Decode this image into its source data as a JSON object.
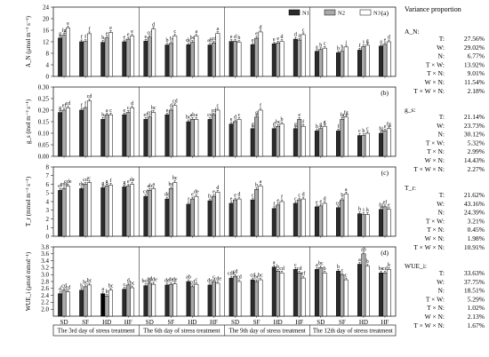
{
  "variance_title": "Variance proportion",
  "legend": [
    {
      "name": "N1",
      "color": "#2b2b2b"
    },
    {
      "name": "N2",
      "color": "#a9a9a9"
    },
    {
      "name": "N3",
      "color": "#ffffff"
    }
  ],
  "groups": [
    "SD",
    "SF",
    "HD",
    "HF"
  ],
  "days": [
    "The 3rd day of stress treatment",
    "The 6th day of stress treatment",
    "The 9th day of stress treatment",
    "The 12th day of stress treatment"
  ],
  "chart_data": [
    {
      "type": "bar",
      "panel": "(a)",
      "ylabel": "A_N (μmol m⁻² s⁻¹)",
      "ylim": [
        0,
        24
      ],
      "yticks": [
        0,
        4,
        8,
        12,
        16,
        20,
        24
      ],
      "series": [
        {
          "name": "N1",
          "values": [
            [
              13.3,
              12.0,
              11.8,
              12.0
            ],
            [
              12.2,
              10.9,
              11.0,
              10.9
            ],
            [
              12.1,
              11.0,
              11.3,
              12.9
            ],
            [
              8.7,
              8.2,
              9.1,
              10.5
            ]
          ]
        },
        {
          "name": "N2",
          "values": [
            [
              14.3,
              12.1,
              13.3,
              12.9
            ],
            [
              13.6,
              11.4,
              11.8,
              11.6
            ],
            [
              12.2,
              13.2,
              11.6,
              12.6
            ],
            [
              9.3,
              8.7,
              10.3,
              11.1
            ]
          ]
        },
        {
          "name": "N3",
          "values": [
            [
              16.8,
              14.8,
              15.2,
              14.0
            ],
            [
              16.4,
              14.0,
              14.0,
              14.9
            ],
            [
              11.8,
              15.4,
              12.1,
              14.5
            ],
            [
              9.8,
              10.2,
              10.8,
              12.0
            ]
          ]
        }
      ],
      "labels": [
        [
          [
            "g",
            "fg",
            "e"
          ],
          [
            "f",
            "f",
            "f"
          ],
          [
            "b",
            "e",
            "e"
          ],
          [
            "e",
            "e",
            "e"
          ]
        ],
        [
          [
            "e",
            "cd",
            "d"
          ],
          [
            "b",
            "b",
            "c"
          ],
          [
            "de",
            "bc",
            "a"
          ],
          [
            "ab",
            "cd",
            "a"
          ]
        ],
        [
          [
            "e",
            "d",
            "b"
          ],
          [
            "e",
            "e",
            "d"
          ],
          [
            "e",
            "e",
            "d"
          ],
          [
            "d",
            "a",
            "c"
          ]
        ],
        [
          [
            "a",
            "b",
            "c"
          ],
          [
            "h",
            "h",
            "i"
          ],
          [
            "f",
            "i",
            "g"
          ],
          [
            "a",
            "e",
            "d"
          ]
        ]
      ],
      "variance": [
        {
          "label": "A_N:",
          "items": []
        },
        {
          "label": "",
          "items": [
            [
              "T:",
              "27.56%"
            ],
            [
              "W:",
              "29.02%"
            ],
            [
              "N:",
              "6.77%"
            ],
            [
              "T × W:",
              "13.92%"
            ],
            [
              "T × N:",
              "9.01%"
            ],
            [
              "W × N:",
              "11.54%"
            ],
            [
              "T × W × N:",
              "2.18%"
            ]
          ]
        }
      ]
    },
    {
      "type": "bar",
      "panel": "(b)",
      "ylabel": "g_s (mol m⁻² s⁻¹)",
      "ylim": [
        0,
        0.3
      ],
      "yticks": [
        0.0,
        0.05,
        0.1,
        0.15,
        0.2,
        0.25,
        0.3
      ],
      "series": [
        {
          "name": "N1",
          "values": [
            [
              0.19,
              0.2,
              0.16,
              0.18
            ],
            [
              0.16,
              0.18,
              0.15,
              0.16
            ],
            [
              0.14,
              0.12,
              0.12,
              0.12
            ],
            [
              0.11,
              0.11,
              0.09,
              0.1
            ]
          ]
        },
        {
          "name": "N2",
          "values": [
            [
              0.2,
              0.21,
              0.18,
              0.19
            ],
            [
              0.17,
              0.2,
              0.16,
              0.18
            ],
            [
              0.15,
              0.17,
              0.13,
              0.16
            ],
            [
              0.12,
              0.16,
              0.09,
              0.11
            ]
          ]
        },
        {
          "name": "N3",
          "values": [
            [
              0.21,
              0.24,
              0.18,
              0.21
            ],
            [
              0.19,
              0.22,
              0.16,
              0.2
            ],
            [
              0.16,
              0.2,
              0.14,
              0.13
            ],
            [
              0.13,
              0.17,
              0.1,
              0.12
            ]
          ]
        }
      ],
      "labels": [
        [
          [
            "g",
            "ef",
            "cd"
          ],
          [
            "f",
            "f",
            "cd"
          ],
          [
            "b",
            "a",
            "c"
          ],
          [
            "e",
            "c",
            "d"
          ]
        ],
        [
          [
            "ef",
            "cd",
            "bc"
          ],
          [
            "e",
            "d",
            "cd"
          ],
          [
            "bc",
            "ab",
            "a"
          ],
          [
            "cd",
            "cd",
            "c"
          ]
        ],
        [
          [
            "e",
            "d",
            "c"
          ],
          [
            "g",
            "g",
            "f"
          ],
          [
            "d",
            "bc",
            "b"
          ],
          [
            "g",
            "e",
            "f"
          ]
        ],
        [
          [
            "h",
            "g",
            "g"
          ],
          [
            "f",
            "fg",
            "fg"
          ],
          [
            "c",
            "b",
            "c"
          ],
          [
            "fg",
            "e",
            "fg"
          ]
        ]
      ],
      "variance": [
        {
          "label": "g_s:",
          "items": []
        },
        {
          "label": "",
          "items": [
            [
              "T:",
              "21.14%"
            ],
            [
              "W:",
              "23.73%"
            ],
            [
              "N:",
              "30.12%"
            ],
            [
              "T × W:",
              "5.32%"
            ],
            [
              "T × N:",
              "2.99%"
            ],
            [
              "W × N:",
              "14.43%"
            ],
            [
              "T × W × N:",
              "2.27%"
            ]
          ]
        }
      ]
    },
    {
      "type": "bar",
      "panel": "(c)",
      "ylabel": "T_r (mmol m⁻² s⁻¹)",
      "ylim": [
        0,
        8
      ],
      "yticks": [
        0,
        1,
        2,
        3,
        4,
        5,
        6,
        7,
        8
      ],
      "series": [
        {
          "name": "N1",
          "values": [
            [
              5.3,
              5.5,
              5.6,
              5.7
            ],
            [
              4.6,
              4.3,
              3.7,
              4.1
            ],
            [
              3.8,
              4.2,
              3.2,
              3.8
            ],
            [
              3.4,
              3.3,
              2.6,
              3.1
            ]
          ]
        },
        {
          "name": "N2",
          "values": [
            [
              5.5,
              6.0,
              5.8,
              5.8
            ],
            [
              5.3,
              5.5,
              4.3,
              4.6
            ],
            [
              4.2,
              5.4,
              3.6,
              4.2
            ],
            [
              3.5,
              4.2,
              2.5,
              3.4
            ]
          ]
        },
        {
          "name": "N3",
          "values": [
            [
              5.8,
              6.2,
              5.9,
              6.0
            ],
            [
              5.5,
              6.2,
              4.6,
              5.1
            ],
            [
              4.3,
              5.8,
              4.0,
              4.3
            ],
            [
              3.8,
              4.9,
              2.5,
              3.1
            ]
          ]
        }
      ],
      "labels": [
        [
          [
            "ef",
            "cde",
            "cde"
          ],
          [
            "de",
            "cd",
            "c"
          ],
          [
            "g",
            "g",
            "f"
          ],
          [
            "g",
            "e",
            "de"
          ]
        ],
        [
          [
            "cd",
            "ab",
            "a"
          ],
          [
            "de",
            "bc",
            "bc"
          ],
          [
            "f",
            "e",
            "de"
          ],
          [
            "fc",
            "e",
            "d"
          ]
        ],
        [
          [
            "e",
            "e",
            "d"
          ],
          [
            "c",
            "b",
            "a"
          ],
          [
            "f",
            "e",
            "f"
          ],
          [
            "c",
            "c",
            "d"
          ]
        ],
        [
          [
            "e",
            "e",
            "d"
          ],
          [
            "cd",
            "b",
            "a"
          ],
          [
            "h",
            "i",
            "h"
          ],
          [
            "fg",
            "ef",
            "e"
          ]
        ]
      ],
      "variance": [
        {
          "label": "T_r:",
          "items": []
        },
        {
          "label": "",
          "items": [
            [
              "T:",
              "21.62%"
            ],
            [
              "W:",
              "43.16%"
            ],
            [
              "N:",
              "24.39%"
            ],
            [
              "T × W:",
              "3.21%"
            ],
            [
              "T × N:",
              "0.45%"
            ],
            [
              "W × N:",
              "1.98%"
            ],
            [
              "T × W × N:",
              "10.91%"
            ]
          ]
        }
      ]
    },
    {
      "type": "bar",
      "panel": "(d)",
      "ylabel": "WUE_i (μmol mmol⁻¹)",
      "ylim": [
        1.8,
        3.8
      ],
      "yticks": [
        2.0,
        2.2,
        2.4,
        2.6,
        2.8,
        3.0,
        3.2,
        3.4,
        3.6,
        3.8
      ],
      "series": [
        {
          "name": "N1",
          "values": [
            [
              2.45,
              2.55,
              2.45,
              2.58
            ],
            [
              2.68,
              2.7,
              2.8,
              2.7
            ],
            [
              2.9,
              2.85,
              3.22,
              3.15
            ],
            [
              3.15,
              3.1,
              3.3,
              3.05
            ]
          ]
        },
        {
          "name": "N2",
          "values": [
            [
              2.55,
              2.65,
              2.38,
              2.7
            ],
            [
              2.75,
              2.72,
              2.65,
              2.8
            ],
            [
              2.95,
              2.8,
              3.1,
              3.05
            ],
            [
              3.2,
              3.0,
              3.6,
              3.05
            ]
          ]
        },
        {
          "name": "N3",
          "values": [
            [
              2.5,
              2.7,
              2.55,
              2.62
            ],
            [
              2.72,
              2.73,
              2.72,
              2.75
            ],
            [
              2.8,
              2.85,
              3.05,
              2.9
            ],
            [
              3.05,
              2.85,
              3.25,
              3.15
            ]
          ]
        }
      ],
      "labels": [
        [
          [
            "d",
            "cd",
            "cd"
          ],
          [
            "b",
            "bc",
            "bc"
          ],
          [
            "a",
            "b",
            "bc"
          ],
          [
            "c",
            "d",
            "bc"
          ]
        ],
        [
          [
            "bcd",
            "cd",
            "cde"
          ],
          [
            "de",
            "de",
            "de"
          ],
          [
            "ab",
            "cd",
            "c"
          ],
          [
            "de",
            "c",
            "cde"
          ]
        ],
        [
          [
            "cde",
            "cd",
            "cd"
          ],
          [
            "cd",
            "bc",
            "bc"
          ],
          [
            "a",
            "b",
            "cd"
          ],
          [
            "c",
            "cd",
            "ef"
          ]
        ],
        [
          [
            "a",
            "bc",
            "b"
          ],
          [
            "b",
            "c",
            "c"
          ],
          [
            "a",
            "ab",
            "b"
          ],
          [
            "bc",
            "cd",
            "b"
          ]
        ]
      ],
      "variance": [
        {
          "label": "WUE_i:",
          "items": []
        },
        {
          "label": "",
          "items": [
            [
              "T:",
              "33.63%"
            ],
            [
              "W:",
              "37.75%"
            ],
            [
              "N:",
              "18.51%"
            ],
            [
              "T × W:",
              "5.29%"
            ],
            [
              "T × N:",
              "1.02%"
            ],
            [
              "W × N:",
              "2.13%"
            ],
            [
              "T × W × N:",
              "1.67%"
            ]
          ]
        }
      ]
    }
  ]
}
